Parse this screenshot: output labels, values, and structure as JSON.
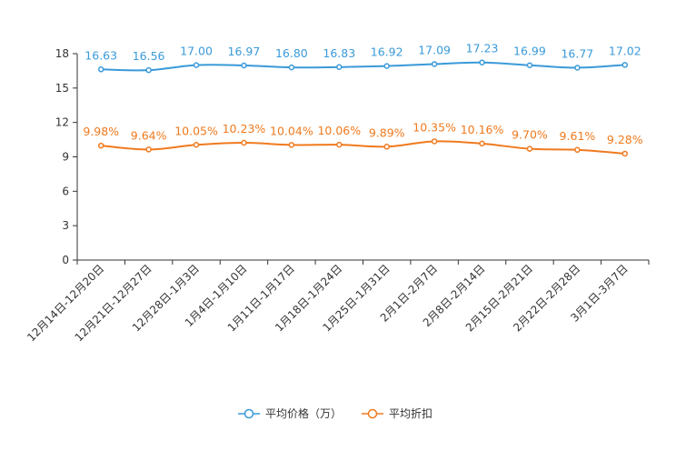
{
  "chart_data": {
    "type": "line",
    "categories": [
      "12月14日-12月20日",
      "12月21日-12月27日",
      "12月28日-1月3日",
      "1月4日-1月10日",
      "1月11日-1月17日",
      "1月18日-1月24日",
      "1月25日-1月31日",
      "2月1日-2月7日",
      "2月8日-2月14日",
      "2月15日-2月21日",
      "2月22日-2月28日",
      "3月1日-3月7日"
    ],
    "ylim": [
      0,
      18
    ],
    "yticks": [
      0,
      3,
      6,
      9,
      12,
      15,
      18
    ],
    "series": [
      {
        "name": "平均价格（万）",
        "color": "#3a9ad9",
        "values": [
          16.63,
          16.56,
          17.0,
          16.97,
          16.8,
          16.83,
          16.92,
          17.09,
          17.23,
          16.99,
          16.77,
          17.02
        ],
        "labels": [
          "16.63",
          "16.56",
          "17.00",
          "16.97",
          "16.80",
          "16.83",
          "16.92",
          "17.09",
          "17.23",
          "16.99",
          "16.77",
          "17.02"
        ]
      },
      {
        "name": "平均折扣",
        "color": "#f07a1e",
        "values": [
          9.98,
          9.64,
          10.05,
          10.23,
          10.04,
          10.06,
          9.89,
          10.35,
          10.16,
          9.7,
          9.61,
          9.28
        ],
        "labels": [
          "9.98%",
          "9.64%",
          "10.05%",
          "10.23%",
          "10.04%",
          "10.06%",
          "9.89%",
          "10.35%",
          "10.16%",
          "9.70%",
          "9.61%",
          "9.28%"
        ]
      }
    ],
    "legend": {
      "position": "bottom-center"
    }
  }
}
